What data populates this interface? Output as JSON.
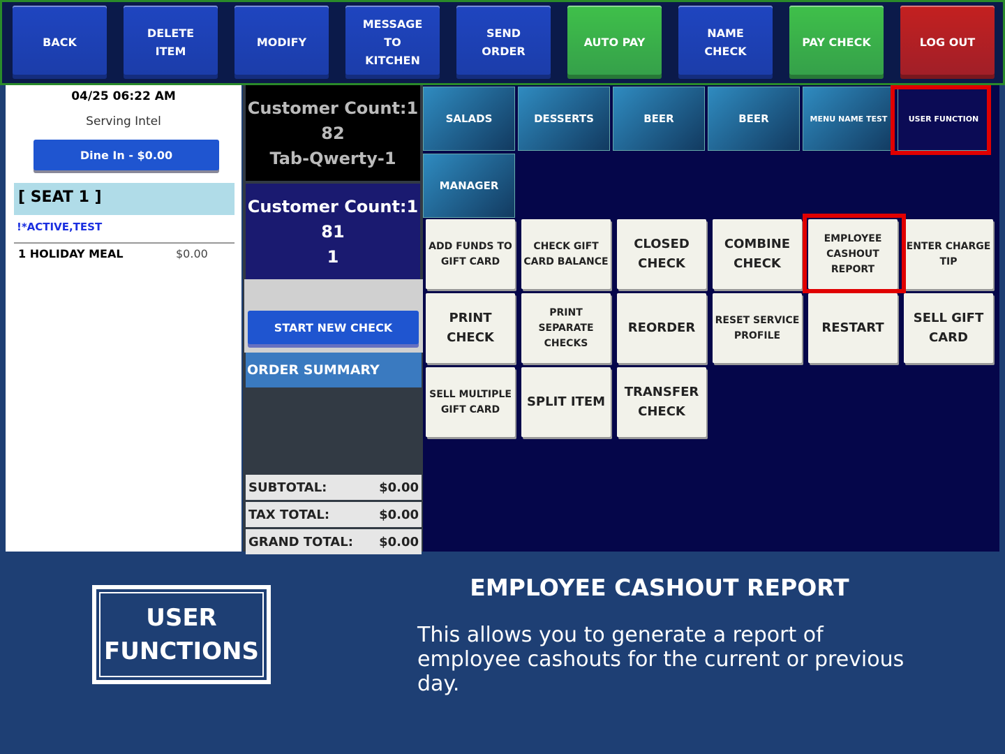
{
  "top_buttons": [
    {
      "lines": [
        "BACK"
      ],
      "color": "#1f45c0"
    },
    {
      "lines": [
        "DELETE",
        "ITEM"
      ],
      "color": "#1f45c0"
    },
    {
      "lines": [
        "MODIFY"
      ],
      "color": "#1f45c0"
    },
    {
      "lines": [
        "MESSAGE",
        "TO",
        "KITCHEN"
      ],
      "color": "#1f45c0"
    },
    {
      "lines": [
        "SEND",
        "ORDER"
      ],
      "color": "#1f45c0"
    },
    {
      "lines": [
        "AUTO PAY"
      ],
      "color": "#3fc04a"
    },
    {
      "lines": [
        "NAME",
        "CHECK"
      ],
      "color": "#1f45c0"
    },
    {
      "lines": [
        "PAY CHECK"
      ],
      "color": "#3fc04a"
    },
    {
      "lines": [
        "LOG OUT"
      ],
      "color": "#c42020"
    }
  ],
  "order": {
    "datetime": "04/25 06:22 AM",
    "server": "Serving Intel",
    "dine_in": "Dine In - $0.00",
    "seat": "[ SEAT 1 ]",
    "status": "!*ACTIVE,TEST",
    "item_name": "1 HOLIDAY MEAL",
    "item_price": "$0.00"
  },
  "checks": [
    {
      "lines": [
        "Customer Count:1",
        "82",
        "Tab-Qwerty-1"
      ]
    },
    {
      "lines": [
        "Customer Count:1",
        "81",
        "1"
      ]
    }
  ],
  "start_new_check": "START NEW CHECK",
  "order_summary": "ORDER SUMMARY",
  "totals": [
    [
      "SUBTOTAL:",
      "$0.00"
    ],
    [
      "TAX TOTAL:",
      "$0.00"
    ],
    [
      "GRAND TOTAL:",
      "$0.00"
    ]
  ],
  "categories": [
    "SALADS",
    "DESSERTS",
    "BEER",
    "BEER",
    "MENU NAME TEST",
    "USER FUNCTION",
    "MANAGER"
  ],
  "functions": [
    [
      "ADD FUNDS TO",
      "GIFT CARD"
    ],
    [
      "CHECK GIFT",
      "CARD BALANCE"
    ],
    [
      "CLOSED",
      "CHECK"
    ],
    [
      "COMBINE",
      "CHECK"
    ],
    [
      "EMPLOYEE",
      "CASHOUT",
      "REPORT"
    ],
    [
      "ENTER CHARGE",
      "TIP"
    ],
    [
      "PRINT",
      "CHECK"
    ],
    [
      "PRINT",
      "SEPARATE",
      "CHECKS"
    ],
    [
      "REORDER"
    ],
    [
      "RESET SERVICE",
      "PROFILE"
    ],
    [
      "RESTART"
    ],
    [
      "SELL GIFT",
      "CARD"
    ],
    [
      "SELL MULTIPLE",
      "GIFT CARD"
    ],
    [
      "SPLIT ITEM"
    ],
    [
      "TRANSFER",
      "CHECK"
    ]
  ],
  "caption": {
    "section": [
      "USER",
      "FUNCTIONS"
    ],
    "title": "EMPLOYEE CASHOUT REPORT",
    "description": "This allows you to generate a report of employee cashouts for the current or previous day."
  }
}
